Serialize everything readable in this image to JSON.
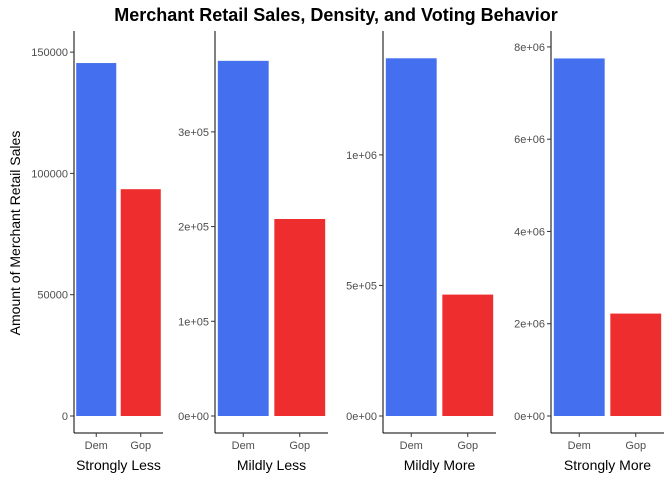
{
  "chart_data": {
    "type": "bar",
    "title": "Merchant Retail Sales, Density, and Voting Behavior",
    "ylabel": "Amount of Merchant Retail Sales",
    "categories": [
      "Dem",
      "Gop"
    ],
    "colors": {
      "Dem": "#4470F0",
      "Gop": "#EE2E2E"
    },
    "grid": false,
    "panels": [
      {
        "name": "Strongly Less",
        "values": [
          145500,
          93500
        ],
        "ylim": [
          0,
          155000
        ],
        "yticks": [
          0,
          50000,
          100000,
          150000
        ],
        "ytick_labels": [
          "0",
          "50000",
          "100000",
          "150000"
        ]
      },
      {
        "name": "Mildly Less",
        "values": [
          375000,
          208000
        ],
        "ylim": [
          0,
          397000
        ],
        "yticks": [
          0,
          100000,
          200000,
          300000
        ],
        "ytick_labels": [
          "0e+00",
          "1e+05",
          "2e+05",
          "3e+05"
        ]
      },
      {
        "name": "Mildly More",
        "values": [
          1370000,
          465000
        ],
        "ylim": [
          0,
          1440000
        ],
        "yticks": [
          0,
          500000,
          1000000
        ],
        "ytick_labels": [
          "0e+00",
          "5e+05",
          "1e+06"
        ]
      },
      {
        "name": "Strongly More",
        "values": [
          7750000,
          2220000
        ],
        "ylim": [
          0,
          8150000
        ],
        "yticks": [
          0,
          2000000,
          4000000,
          6000000,
          8000000
        ],
        "ytick_labels": [
          "0e+00",
          "2e+06",
          "4e+06",
          "6e+06",
          "8e+06"
        ]
      }
    ]
  }
}
